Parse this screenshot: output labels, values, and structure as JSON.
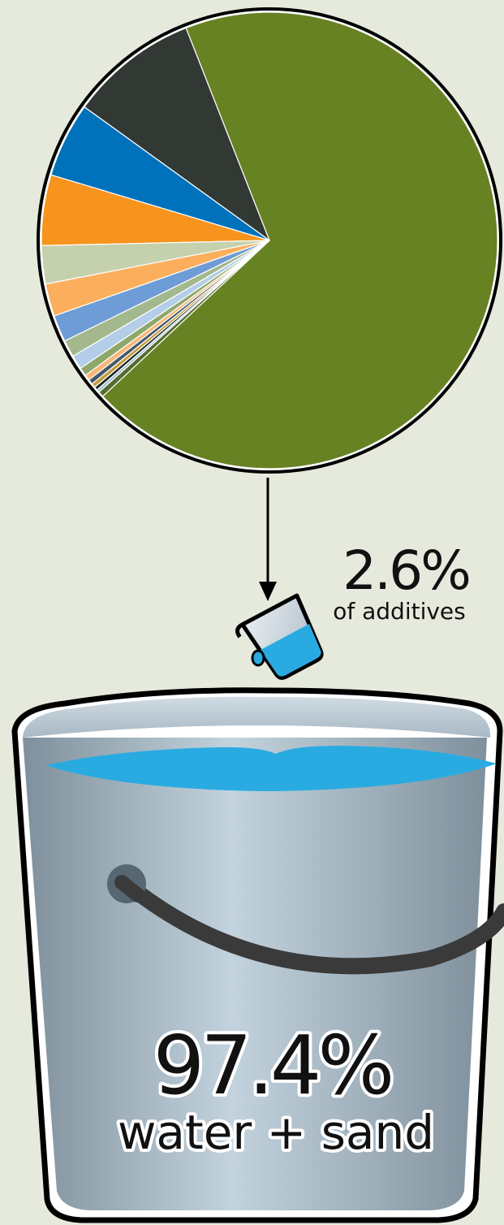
{
  "chart_data": {
    "type": "pie",
    "title": "",
    "slices": [
      {
        "value": 69.0,
        "color": "#678223"
      },
      {
        "value": 9.1,
        "color": "#323833"
      },
      {
        "value": 5.3,
        "color": "#0072bc"
      },
      {
        "value": 5.0,
        "color": "#f7941e"
      },
      {
        "value": 2.7,
        "color": "#c5d0ad"
      },
      {
        "value": 2.3,
        "color": "#fbaf5d"
      },
      {
        "value": 1.9,
        "color": "#6d9cd6"
      },
      {
        "value": 1.2,
        "color": "#a3b88c"
      },
      {
        "value": 1.0,
        "color": "#b4cde8"
      },
      {
        "value": 0.6,
        "color": "#8fa86a"
      },
      {
        "value": 0.4,
        "color": "#f7b77a"
      },
      {
        "value": 0.35,
        "color": "#45586b"
      },
      {
        "value": 0.3,
        "color": "#c49a3c"
      },
      {
        "value": 0.25,
        "color": "#1f2a20"
      },
      {
        "value": 0.2,
        "color": "#9fbcd9"
      },
      {
        "value": 0.4,
        "color": "#556b2f"
      }
    ]
  },
  "additives": {
    "value": "2.6%",
    "label": "of additives"
  },
  "bucket": {
    "value": "97.4%",
    "label": "water + sand"
  },
  "colors": {
    "background": "#e6eadc",
    "water": "#29abe2",
    "bucket_dark": "#8a9ba8",
    "bucket_light": "#c4d4df",
    "handle": "#3a3a3a"
  }
}
